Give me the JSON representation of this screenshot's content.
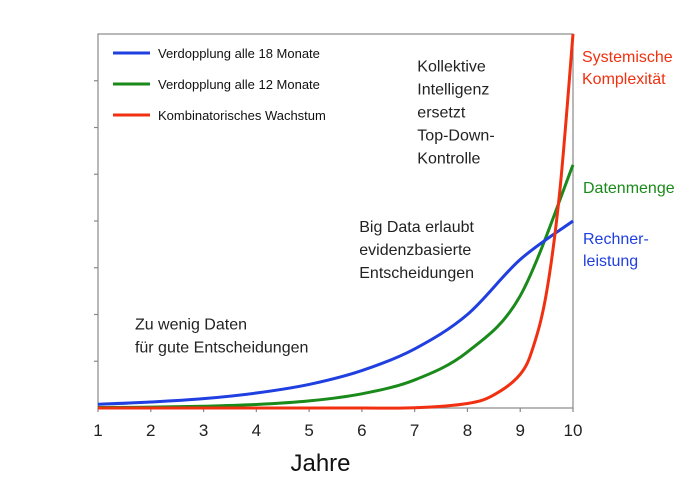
{
  "chart_data": {
    "type": "line",
    "title": "",
    "xlabel": "Jahre",
    "ylabel": "",
    "xlim": [
      1,
      10
    ],
    "ylim": [
      0,
      1
    ],
    "x_ticks": [
      1,
      2,
      3,
      4,
      5,
      6,
      7,
      8,
      9,
      10
    ],
    "y_tick_count": 8,
    "grid": false,
    "legend_position": "top-left",
    "series": [
      {
        "name": "Verdopplung alle 18 Monate",
        "end_label": "Rechner-\nleistung",
        "color": "#1f3fe0",
        "x": [
          1,
          2,
          3,
          4,
          5,
          6,
          7,
          8,
          9,
          10
        ],
        "values": [
          0.01,
          0.016,
          0.025,
          0.04,
          0.063,
          0.1,
          0.158,
          0.25,
          0.397,
          0.5
        ]
      },
      {
        "name": "Verdopplung alle 12 Monate",
        "end_label": "Datenmenge",
        "color": "#1a8a1a",
        "x": [
          1,
          2,
          3,
          4,
          5,
          6,
          7,
          8,
          9,
          10
        ],
        "values": [
          0.0012,
          0.0023,
          0.0047,
          0.0094,
          0.019,
          0.038,
          0.075,
          0.15,
          0.3,
          0.65
        ]
      },
      {
        "name": "Kombinatorisches Wachstum",
        "end_label": "Systemische\nKomplexität",
        "color": "#f03010",
        "x": [
          1,
          2,
          3,
          4,
          5,
          6,
          7,
          8,
          8.5,
          9,
          9.25,
          9.5,
          9.75,
          10
        ],
        "values": [
          0,
          0,
          0,
          0,
          0,
          0,
          0.0005,
          0.012,
          0.035,
          0.09,
          0.165,
          0.31,
          0.58,
          1.0
        ]
      }
    ],
    "annotations": [
      {
        "text": "Zu wenig Daten\nfür gute  Entscheidungen",
        "x": 1.7,
        "y": 0.21
      },
      {
        "text": "Big Data erlaubt\nevidenzbasierte\nEntscheidungen",
        "x": 5.95,
        "y": 0.47
      },
      {
        "text": "Kollektive\nIntelligenz\nersetzt\nTop-Down-\nKontrolle",
        "x": 7.05,
        "y": 0.9
      }
    ]
  }
}
